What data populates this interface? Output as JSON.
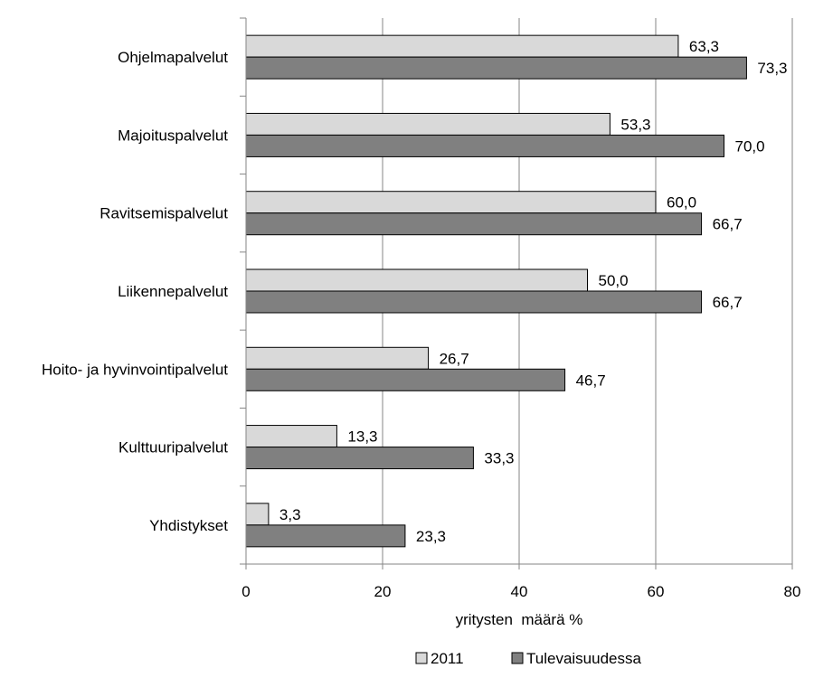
{
  "chart_data": {
    "type": "bar",
    "orientation": "horizontal",
    "title": "",
    "xlabel": "yritysten  määrä %",
    "ylabel": "",
    "xlim": [
      0,
      80
    ],
    "x_ticks": [
      "0",
      "20",
      "40",
      "60",
      "80"
    ],
    "grid": true,
    "legend_position": "bottom",
    "categories": [
      "Ohjelmapalvelut",
      "Majoituspalvelut",
      "Ravitsemispalvelut",
      "Liikennepalvelut",
      "Hoito- ja hyvinvointipalvelut",
      "Kulttuuripalvelut",
      "Yhdistykset"
    ],
    "series": [
      {
        "name": "2011",
        "color": "#d9d9d9",
        "values": [
          63.3,
          53.3,
          60.0,
          50.0,
          26.7,
          13.3,
          3.3
        ],
        "labels": [
          "63,3",
          "53,3",
          "60,0",
          "50,0",
          "26,7",
          "13,3",
          "3,3"
        ]
      },
      {
        "name": "Tulevaisuudessa",
        "color": "#808080",
        "values": [
          73.3,
          70.0,
          66.7,
          66.7,
          46.7,
          33.3,
          23.3
        ],
        "labels": [
          "73,3",
          "70,0",
          "66,7",
          "66,7",
          "46,7",
          "33,3",
          "23,3"
        ]
      }
    ]
  }
}
